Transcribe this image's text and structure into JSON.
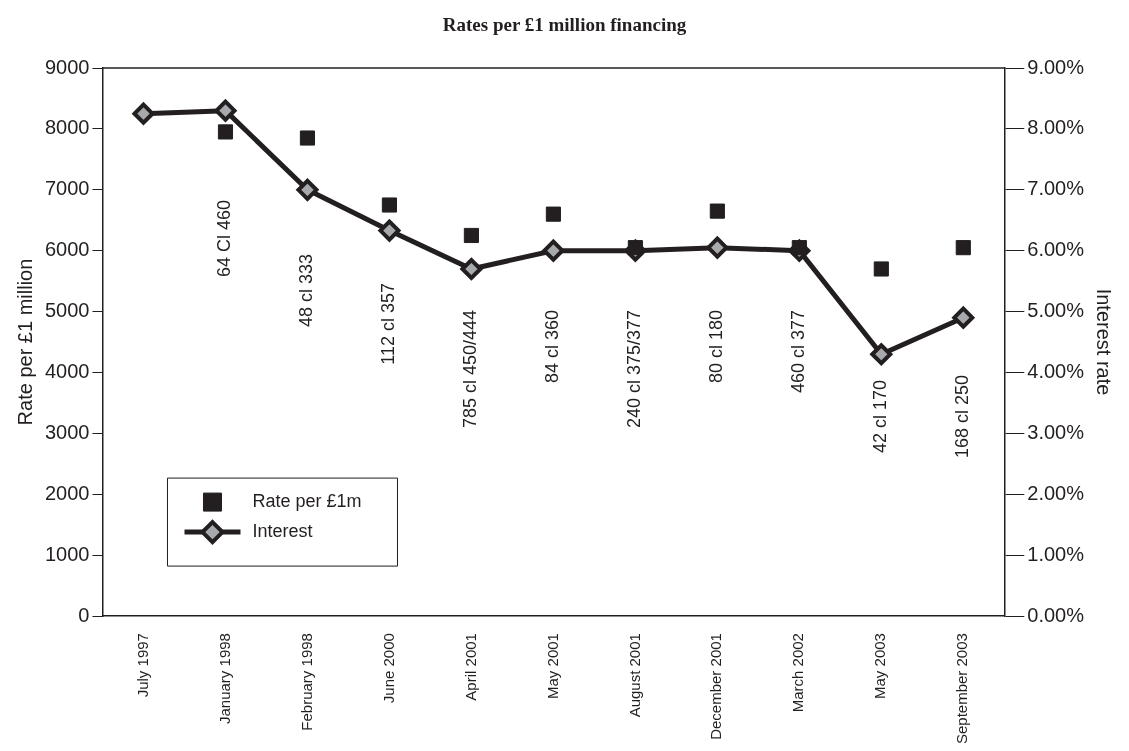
{
  "chart_data": {
    "type": "scatter",
    "title": "Rates per £1 million financing",
    "ylabel": "Rate per £1 million",
    "y2label": "Interest rate",
    "categories": [
      "July 1997",
      "January 1998",
      "February 1998",
      "June 2000",
      "April 2001",
      "May 2001",
      "August 2001",
      "December 2001",
      "March 2002",
      "May 2003",
      "September 2003"
    ],
    "series": [
      {
        "name": "Rate per £1m",
        "marker": "square",
        "color": "#231f20",
        "values": [
          null,
          7950,
          7850,
          6750,
          6250,
          6600,
          6050,
          6650,
          6050,
          5700,
          6050
        ]
      },
      {
        "name": "Interest",
        "type": "line",
        "marker": "diamond",
        "axis": "y2",
        "color": "#231f20",
        "values": [
          8.25,
          8.3,
          7.0,
          6.33,
          5.7,
          6.0,
          6.0,
          6.05,
          6.0,
          4.3,
          4.9
        ]
      }
    ],
    "ylim": [
      0,
      9000
    ],
    "yticks": [
      0,
      1000,
      2000,
      3000,
      4000,
      5000,
      6000,
      7000,
      8000,
      9000
    ],
    "y2lim": [
      0,
      9
    ],
    "y2ticks": [
      {
        "value": 0,
        "label": "0.00%"
      },
      {
        "value": 1,
        "label": "1.00%"
      },
      {
        "value": 2,
        "label": "2.00%"
      },
      {
        "value": 3,
        "label": "3.00%"
      },
      {
        "value": 4,
        "label": "4.00%"
      },
      {
        "value": 5,
        "label": "5.00%"
      },
      {
        "value": 6,
        "label": "6.00%"
      },
      {
        "value": 7,
        "label": "7.00%"
      },
      {
        "value": 8,
        "label": "8.00%"
      },
      {
        "value": 9,
        "label": "9.00%"
      }
    ],
    "annotations": [
      "64 Cl 460",
      "48 cl 333",
      "112 cl 357",
      "785 cl 450/444",
      "84 cl 360",
      "240 cl 375/377",
      "80 cl 180",
      "460 cl 377",
      "42 cl 170",
      "168 cl 250"
    ],
    "grid": false,
    "legend": "bottom left"
  }
}
